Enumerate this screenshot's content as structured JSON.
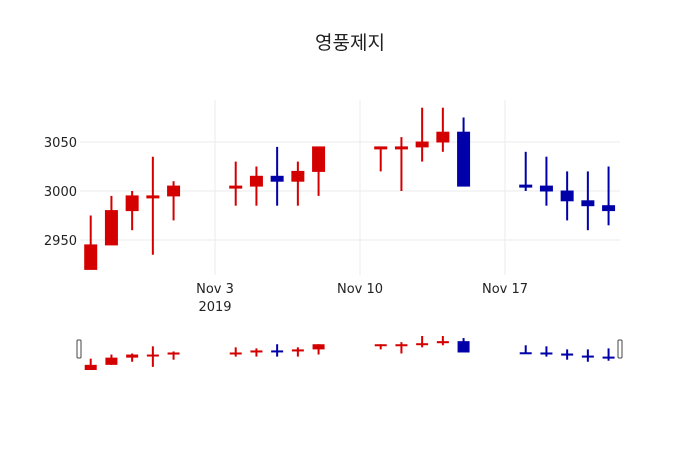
{
  "chart_data": {
    "type": "candlestick",
    "title": "영풍제지",
    "xlabel": "",
    "ylabel": "",
    "ylim": [
      2911,
      3092
    ],
    "y_ticks": [
      2950,
      3000,
      3050
    ],
    "x_ticks": [
      {
        "date": "2019-11-03",
        "label": "Nov 3",
        "sublabel": "2019"
      },
      {
        "date": "2019-11-10",
        "label": "Nov 10",
        "sublabel": ""
      },
      {
        "date": "2019-11-17",
        "label": "Nov 17",
        "sublabel": ""
      }
    ],
    "grid": true,
    "rangeslider": true,
    "increasing_color": "#d40000",
    "decreasing_color": "#0000a8",
    "candles": [
      {
        "date": "2019-10-28",
        "open": 2920,
        "high": 2975,
        "low": 2920,
        "close": 2945
      },
      {
        "date": "2019-10-29",
        "open": 2945,
        "high": 2995,
        "low": 2945,
        "close": 2980
      },
      {
        "date": "2019-10-30",
        "open": 2980,
        "high": 3000,
        "low": 2960,
        "close": 2995
      },
      {
        "date": "2019-10-31",
        "open": 2994,
        "high": 3035,
        "low": 2935,
        "close": 2995
      },
      {
        "date": "2019-11-01",
        "open": 2995,
        "high": 3010,
        "low": 2970,
        "close": 3005
      },
      {
        "date": "2019-11-04",
        "open": 3004,
        "high": 3030,
        "low": 2985,
        "close": 3005
      },
      {
        "date": "2019-11-05",
        "open": 3005,
        "high": 3025,
        "low": 2985,
        "close": 3015
      },
      {
        "date": "2019-11-06",
        "open": 3015,
        "high": 3045,
        "low": 2985,
        "close": 3010
      },
      {
        "date": "2019-11-07",
        "open": 3010,
        "high": 3030,
        "low": 2985,
        "close": 3020
      },
      {
        "date": "2019-11-08",
        "open": 3020,
        "high": 3045,
        "low": 2995,
        "close": 3045
      },
      {
        "date": "2019-11-11",
        "open": 3044,
        "high": 3045,
        "low": 3020,
        "close": 3045
      },
      {
        "date": "2019-11-12",
        "open": 3044,
        "high": 3055,
        "low": 3000,
        "close": 3045
      },
      {
        "date": "2019-11-13",
        "open": 3045,
        "high": 3085,
        "low": 3030,
        "close": 3050
      },
      {
        "date": "2019-11-14",
        "open": 3050,
        "high": 3085,
        "low": 3040,
        "close": 3060
      },
      {
        "date": "2019-11-15",
        "open": 3060,
        "high": 3075,
        "low": 3005,
        "close": 3005
      },
      {
        "date": "2019-11-18",
        "open": 3006,
        "high": 3040,
        "low": 3000,
        "close": 3004
      },
      {
        "date": "2019-11-19",
        "open": 3005,
        "high": 3035,
        "low": 2985,
        "close": 3000
      },
      {
        "date": "2019-11-20",
        "open": 3000,
        "high": 3020,
        "low": 2970,
        "close": 2990
      },
      {
        "date": "2019-11-21",
        "open": 2990,
        "high": 3020,
        "low": 2960,
        "close": 2985
      },
      {
        "date": "2019-11-22",
        "open": 2985,
        "high": 3025,
        "low": 2965,
        "close": 2980
      }
    ]
  }
}
